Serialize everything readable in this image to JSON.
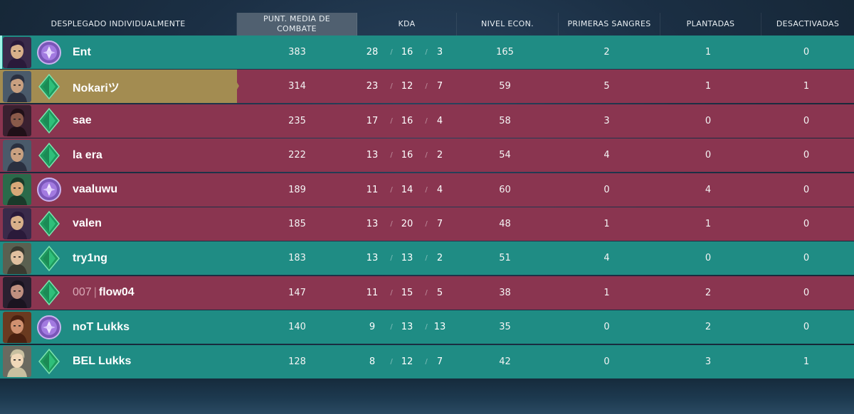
{
  "header": {
    "player_col": "DESPLEGADO INDIVIDUALMENTE",
    "acs_line1": "PUNT. MEDIA DE",
    "acs_line2": "COMBATE",
    "kda": "KDA",
    "econ": "NIVEL ECON.",
    "first_bloods": "PRIMERAS SANGRES",
    "plants": "PLANTADAS",
    "defuses": "DESACTIVADAS"
  },
  "colors": {
    "team_ally": "#1f8c84",
    "team_enemy": "#8a3550",
    "highlight": "#a38c51",
    "rank_purple": "#9a6ad6",
    "rank_green": "#2fbf7a"
  },
  "players": [
    {
      "name": "Ent",
      "tag": "",
      "team": "green",
      "rank_icon": "ascendant-rank-icon",
      "rank_color": "purple",
      "acs": "383",
      "k": "28",
      "d": "16",
      "a": "3",
      "econ": "165",
      "fb": "2",
      "plants": "1",
      "defuses": "0"
    },
    {
      "name": "Nokariツ",
      "tag": "",
      "team": "gold",
      "rank_icon": "diamond-rank-icon",
      "rank_color": "green",
      "acs": "314",
      "k": "23",
      "d": "12",
      "a": "7",
      "econ": "59",
      "fb": "5",
      "plants": "1",
      "defuses": "1"
    },
    {
      "name": "sae",
      "tag": "",
      "team": "red",
      "rank_icon": "diamond-rank-icon",
      "rank_color": "green",
      "acs": "235",
      "k": "17",
      "d": "16",
      "a": "4",
      "econ": "58",
      "fb": "3",
      "plants": "0",
      "defuses": "0"
    },
    {
      "name": "la era",
      "tag": "",
      "team": "red",
      "rank_icon": "diamond-rank-icon",
      "rank_color": "green",
      "acs": "222",
      "k": "13",
      "d": "16",
      "a": "2",
      "econ": "54",
      "fb": "4",
      "plants": "0",
      "defuses": "0"
    },
    {
      "name": "vaaluwu",
      "tag": "",
      "team": "red",
      "rank_icon": "ascendant-rank-icon",
      "rank_color": "purple",
      "acs": "189",
      "k": "11",
      "d": "14",
      "a": "4",
      "econ": "60",
      "fb": "0",
      "plants": "4",
      "defuses": "0"
    },
    {
      "name": "valen",
      "tag": "",
      "team": "red",
      "rank_icon": "diamond-rank-icon",
      "rank_color": "green",
      "acs": "185",
      "k": "13",
      "d": "20",
      "a": "7",
      "econ": "48",
      "fb": "1",
      "plants": "1",
      "defuses": "0"
    },
    {
      "name": "try1ng",
      "tag": "",
      "team": "green",
      "rank_icon": "diamond-rank-icon",
      "rank_color": "green",
      "acs": "183",
      "k": "13",
      "d": "13",
      "a": "2",
      "econ": "51",
      "fb": "4",
      "plants": "0",
      "defuses": "0"
    },
    {
      "name": "flow04",
      "tag": "007",
      "team": "red",
      "rank_icon": "diamond-rank-icon",
      "rank_color": "green",
      "acs": "147",
      "k": "11",
      "d": "15",
      "a": "5",
      "econ": "38",
      "fb": "1",
      "plants": "2",
      "defuses": "0"
    },
    {
      "name": "noT Lukks",
      "tag": "",
      "team": "green",
      "rank_icon": "ascendant-rank-icon",
      "rank_color": "purple",
      "acs": "140",
      "k": "9",
      "d": "13",
      "a": "13",
      "econ": "35",
      "fb": "0",
      "plants": "2",
      "defuses": "0"
    },
    {
      "name": "BEL Lukks",
      "tag": "",
      "team": "green",
      "rank_icon": "diamond-rank-icon",
      "rank_color": "green",
      "acs": "128",
      "k": "8",
      "d": "12",
      "a": "7",
      "econ": "42",
      "fb": "0",
      "plants": "3",
      "defuses": "1"
    }
  ]
}
